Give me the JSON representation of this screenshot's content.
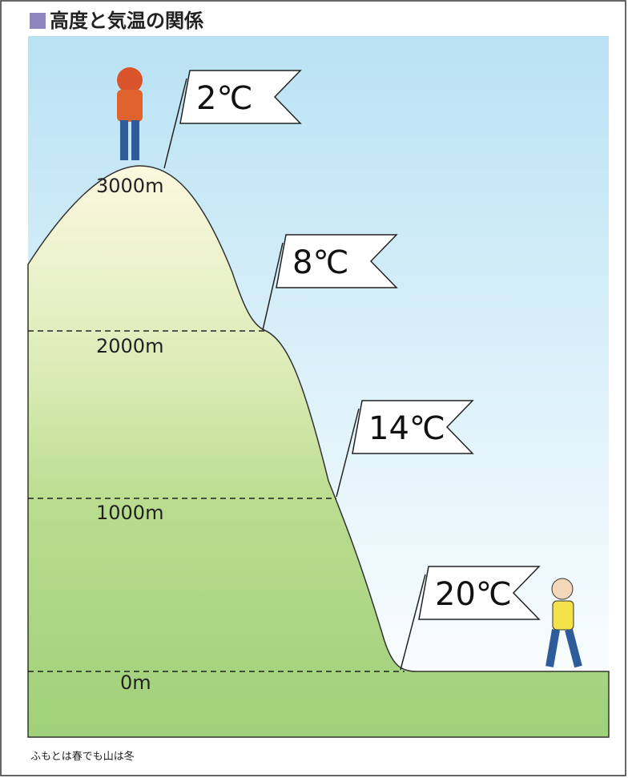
{
  "title": "高度と気温の関係",
  "caption": "ふもとは春でも山は冬",
  "levels": [
    {
      "altitude": "3000m",
      "temperature": "2℃"
    },
    {
      "altitude": "2000m",
      "temperature": "8℃"
    },
    {
      "altitude": "1000m",
      "temperature": "14℃"
    },
    {
      "altitude": "0m",
      "temperature": "20℃"
    }
  ]
}
